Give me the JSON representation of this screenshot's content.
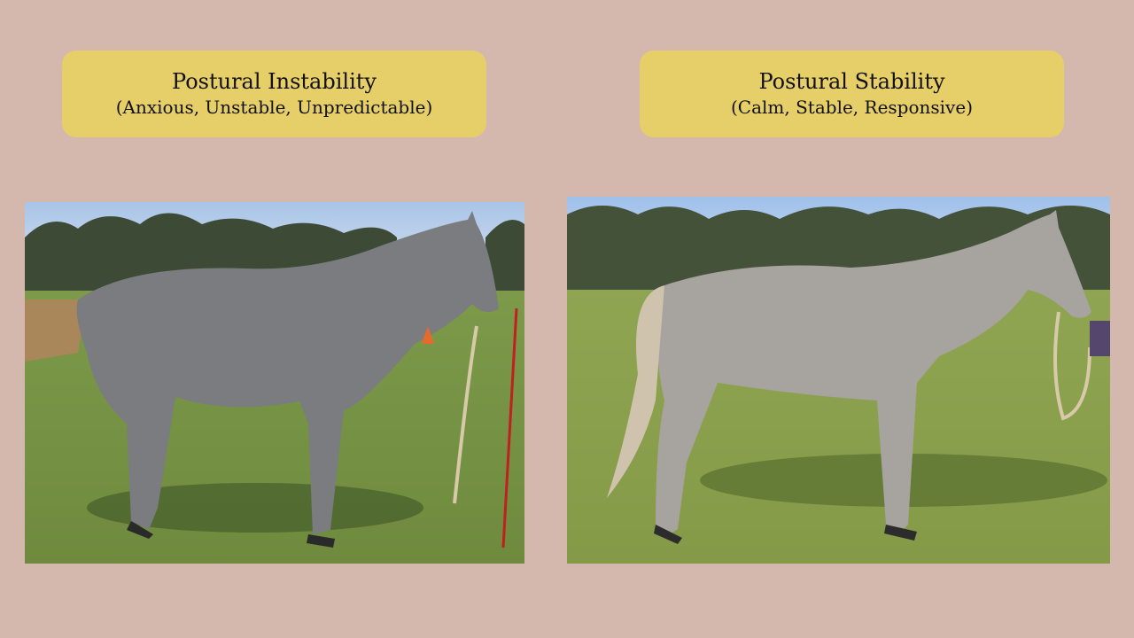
{
  "left": {
    "title": "Postural Instability",
    "subtitle": "(Anxious, Unstable, Unpredictable)",
    "photo": "grey horse standing with head held high on grass"
  },
  "right": {
    "title": "Postural Stability",
    "subtitle": "(Calm, Stable, Responsive)",
    "photo": "grey horse standing relaxed with lowered neck on grass"
  },
  "colors": {
    "background": "#d5b8ad",
    "label_fill": "#e6ce69"
  }
}
